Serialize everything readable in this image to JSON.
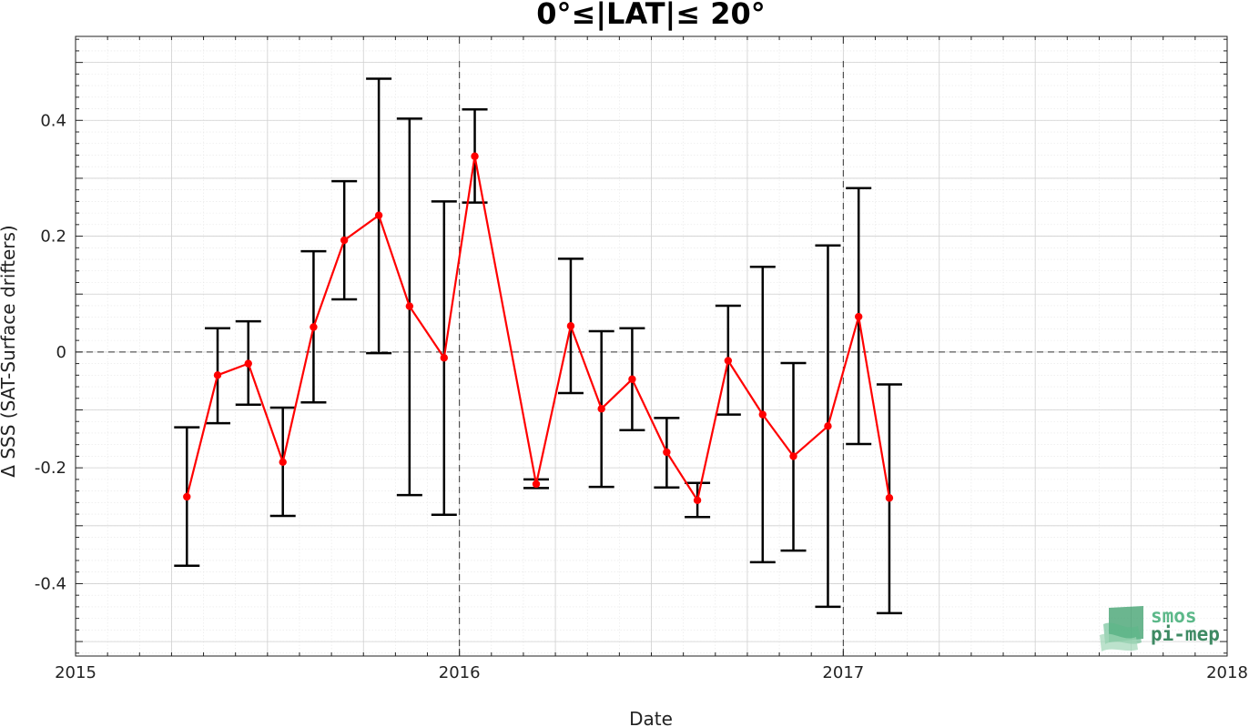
{
  "chart_data": {
    "type": "line",
    "title": "0°≤|LAT|≤ 20°",
    "xlabel": "Date",
    "ylabel": "Δ SSS (SAT-Surface drifters)",
    "xlim": [
      2015.0,
      2018.0
    ],
    "ylim": [
      -0.525,
      0.545
    ],
    "x_ticks": [
      2015,
      2016,
      2017,
      2018
    ],
    "x_tick_labels": [
      "2015",
      "2016",
      "2017",
      "2018"
    ],
    "y_ticks": [
      -0.4,
      -0.2,
      0,
      0.2,
      0.4
    ],
    "y_tick_labels": [
      "-0.4",
      "-0.2",
      "0",
      "0.2",
      "0.4"
    ],
    "grid": true,
    "reference_lines": {
      "y": [
        0
      ],
      "x": [
        2016,
        2017
      ]
    },
    "series": [
      {
        "color": "#ff0000",
        "errorbar_color": "#000000",
        "points": [
          {
            "x": 2015.29,
            "y": -0.25,
            "low": -0.369,
            "high": -0.13
          },
          {
            "x": 2015.37,
            "y": -0.04,
            "low": -0.123,
            "high": 0.041
          },
          {
            "x": 2015.45,
            "y": -0.02,
            "low": -0.091,
            "high": 0.053
          },
          {
            "x": 2015.54,
            "y": -0.19,
            "low": -0.283,
            "high": -0.096
          },
          {
            "x": 2015.62,
            "y": 0.043,
            "low": -0.087,
            "high": 0.174
          },
          {
            "x": 2015.7,
            "y": 0.193,
            "low": 0.091,
            "high": 0.295
          },
          {
            "x": 2015.79,
            "y": 0.236,
            "low": -0.002,
            "high": 0.472
          },
          {
            "x": 2015.87,
            "y": 0.079,
            "low": -0.247,
            "high": 0.403
          },
          {
            "x": 2015.96,
            "y": -0.01,
            "low": -0.281,
            "high": 0.26
          },
          {
            "x": 2016.04,
            "y": 0.338,
            "low": 0.258,
            "high": 0.419
          },
          {
            "x": 2016.2,
            "y": -0.228,
            "low": -0.235,
            "high": -0.22
          },
          {
            "x": 2016.29,
            "y": 0.045,
            "low": -0.071,
            "high": 0.161
          },
          {
            "x": 2016.37,
            "y": -0.098,
            "low": -0.233,
            "high": 0.036
          },
          {
            "x": 2016.45,
            "y": -0.047,
            "low": -0.135,
            "high": 0.041
          },
          {
            "x": 2016.54,
            "y": -0.173,
            "low": -0.234,
            "high": -0.114
          },
          {
            "x": 2016.62,
            "y": -0.256,
            "low": -0.285,
            "high": -0.226
          },
          {
            "x": 2016.7,
            "y": -0.015,
            "low": -0.108,
            "high": 0.08
          },
          {
            "x": 2016.79,
            "y": -0.108,
            "low": -0.363,
            "high": 0.147
          },
          {
            "x": 2016.87,
            "y": -0.18,
            "low": -0.343,
            "high": -0.019
          },
          {
            "x": 2016.96,
            "y": -0.128,
            "low": -0.44,
            "high": 0.184
          },
          {
            "x": 2017.04,
            "y": 0.061,
            "low": -0.159,
            "high": 0.283
          },
          {
            "x": 2017.12,
            "y": -0.252,
            "low": -0.451,
            "high": -0.056
          }
        ]
      }
    ]
  },
  "logo": {
    "line1": "smos",
    "line2": "pi-mep"
  }
}
